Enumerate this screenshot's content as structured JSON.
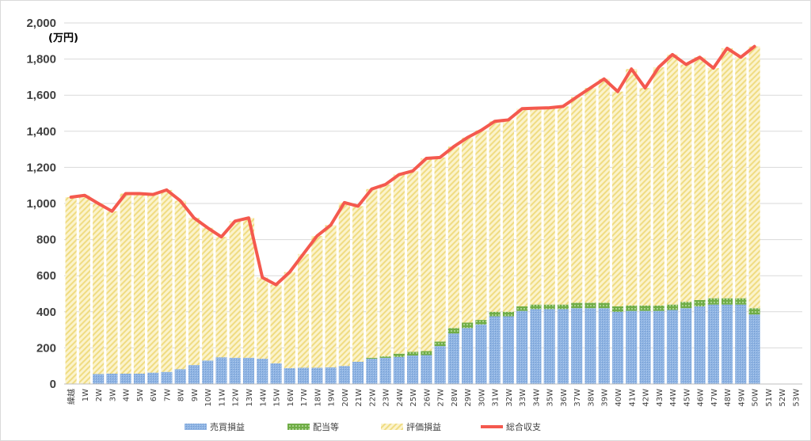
{
  "chart_data": {
    "type": "bar",
    "stacked": true,
    "unit_label": "(万円)",
    "categories": [
      "繰越",
      "1W",
      "2W",
      "3W",
      "4W",
      "5W",
      "6W",
      "7W",
      "8W",
      "9W",
      "10W",
      "11W",
      "12W",
      "13W",
      "14W",
      "15W",
      "16W",
      "17W",
      "18W",
      "19W",
      "20W",
      "21W",
      "22W",
      "23W",
      "24W",
      "25W",
      "26W",
      "27W",
      "28W",
      "29W",
      "30W",
      "31W",
      "32W",
      "33W",
      "34W",
      "35W",
      "36W",
      "37W",
      "38W",
      "39W",
      "40W",
      "41W",
      "42W",
      "43W",
      "44W",
      "45W",
      "46W",
      "47W",
      "48W",
      "49W",
      "50W",
      "51W",
      "52W",
      "53W"
    ],
    "ylim": [
      0,
      2000
    ],
    "yticks": [
      "0",
      "200",
      "400",
      "600",
      "800",
      "1,000",
      "1,200",
      "1,400",
      "1,600",
      "1,800",
      "2,000"
    ],
    "ytick_values": [
      0,
      200,
      400,
      600,
      800,
      1000,
      1200,
      1400,
      1600,
      1800,
      2000
    ],
    "grid": true,
    "legend_position": "bottom",
    "series": [
      {
        "name": "売買損益",
        "kind": "bar",
        "color": "#8fb4e3",
        "values": [
          0,
          0,
          55,
          57,
          57,
          57,
          63,
          67,
          82,
          105,
          130,
          148,
          145,
          145,
          140,
          115,
          88,
          90,
          90,
          92,
          100,
          123,
          140,
          145,
          150,
          158,
          160,
          210,
          280,
          310,
          330,
          375,
          375,
          405,
          415,
          415,
          415,
          420,
          420,
          420,
          400,
          405,
          405,
          405,
          410,
          420,
          430,
          440,
          440,
          440,
          385,
          null,
          null,
          null
        ]
      },
      {
        "name": "配当等",
        "kind": "bar",
        "color": "#70ad47",
        "values": [
          0,
          0,
          0,
          0,
          0,
          0,
          0,
          0,
          0,
          0,
          0,
          0,
          0,
          0,
          0,
          0,
          0,
          0,
          0,
          0,
          0,
          0,
          5,
          8,
          18,
          20,
          22,
          25,
          30,
          30,
          25,
          25,
          25,
          25,
          25,
          25,
          25,
          30,
          30,
          30,
          30,
          30,
          30,
          30,
          30,
          35,
          35,
          35,
          35,
          35,
          35,
          null,
          null,
          null
        ]
      },
      {
        "name": "評価損益",
        "kind": "bar",
        "color": "#f5e7a1",
        "values": [
          1035,
          1045,
          945,
          900,
          998,
          998,
          987,
          1008,
          933,
          815,
          735,
          667,
          757,
          775,
          450,
          435,
          532,
          630,
          730,
          788,
          905,
          862,
          935,
          952,
          992,
          1002,
          1068,
          1020,
          1005,
          1025,
          1050,
          1055,
          1063,
          1095,
          1088,
          1090,
          1098,
          1140,
          1190,
          1240,
          1190,
          1310,
          1205,
          1320,
          1385,
          1315,
          1345,
          1275,
          1385,
          1335,
          1450,
          null,
          null,
          null
        ]
      },
      {
        "name": "総合収支",
        "kind": "line",
        "color": "#f4594e",
        "values": [
          1035,
          1045,
          1000,
          957,
          1055,
          1055,
          1050,
          1075,
          1015,
          920,
          865,
          815,
          902,
          920,
          590,
          550,
          620,
          720,
          820,
          880,
          1005,
          985,
          1080,
          1105,
          1160,
          1180,
          1250,
          1255,
          1315,
          1365,
          1405,
          1455,
          1463,
          1525,
          1528,
          1530,
          1538,
          1590,
          1640,
          1690,
          1620,
          1745,
          1640,
          1755,
          1825,
          1770,
          1810,
          1750,
          1860,
          1810,
          1870,
          null,
          null,
          null
        ]
      }
    ]
  }
}
